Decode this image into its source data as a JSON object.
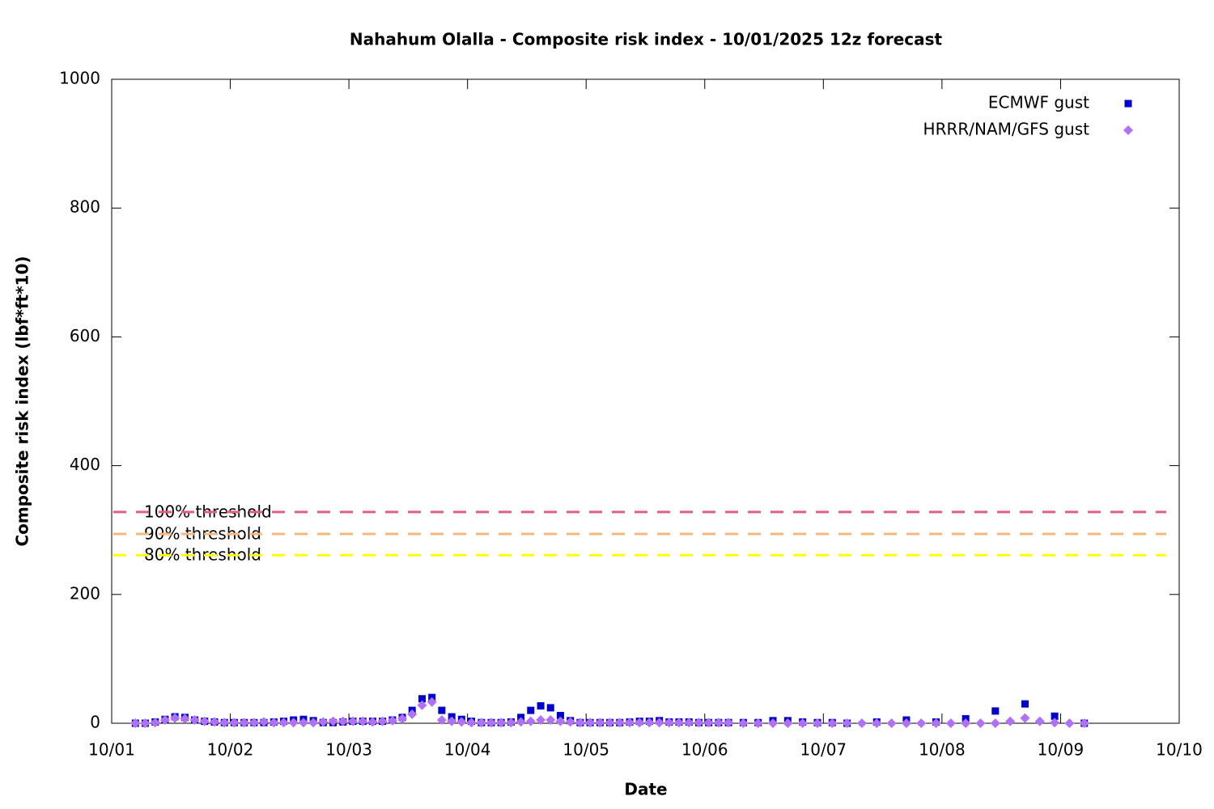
{
  "chart_data": {
    "type": "scatter",
    "title": "Nahahum Olalla - Composite risk index - 10/01/2025 12z forecast",
    "x_label": "Date",
    "y_label": "Composite risk index (lbf*ft*10)",
    "xlim": [
      1,
      10
    ],
    "xticks": [
      {
        "value": 1,
        "label": "10/01"
      },
      {
        "value": 2,
        "label": "10/02"
      },
      {
        "value": 3,
        "label": "10/03"
      },
      {
        "value": 4,
        "label": "10/04"
      },
      {
        "value": 5,
        "label": "10/05"
      },
      {
        "value": 6,
        "label": "10/06"
      },
      {
        "value": 7,
        "label": "10/07"
      },
      {
        "value": 8,
        "label": "10/08"
      },
      {
        "value": 9,
        "label": "10/09"
      },
      {
        "value": 10,
        "label": "10/10"
      }
    ],
    "ylim": [
      0,
      1000
    ],
    "yticks": [
      0,
      200,
      400,
      600,
      800,
      1000
    ],
    "legend": "top right",
    "x": [
      1.2,
      1.283,
      1.367,
      1.45,
      1.533,
      1.617,
      1.7,
      1.783,
      1.867,
      1.95,
      2.033,
      2.117,
      2.2,
      2.283,
      2.367,
      2.45,
      2.533,
      2.617,
      2.7,
      2.783,
      2.867,
      2.95,
      3.033,
      3.117,
      3.2,
      3.283,
      3.367,
      3.45,
      3.533,
      3.617,
      3.7,
      3.783,
      3.867,
      3.95,
      4.033,
      4.117,
      4.2,
      4.283,
      4.367,
      4.45,
      4.533,
      4.617,
      4.7,
      4.783,
      4.867,
      4.95,
      5.033,
      5.117,
      5.2,
      5.283,
      5.367,
      5.45,
      5.533,
      5.617,
      5.7,
      5.783,
      5.867,
      5.95,
      6.033,
      6.117,
      6.2,
      6.325,
      6.45,
      6.575,
      6.7,
      6.825,
      6.95,
      7.075,
      7.2,
      7.325,
      7.45,
      7.575,
      7.7,
      7.825,
      7.95,
      8.075,
      8.2,
      8.325,
      8.45,
      8.575,
      8.7,
      8.825,
      8.95,
      9.075,
      9.2
    ],
    "series": [
      {
        "name": "ECMWF gust",
        "color": "#0000cc",
        "marker": "square",
        "values": [
          0,
          0,
          2,
          6,
          10,
          9,
          5,
          3,
          2,
          1,
          1,
          1,
          1,
          1,
          2,
          3,
          5,
          6,
          4,
          1,
          1,
          2,
          3,
          3,
          3,
          3,
          5,
          9,
          20,
          38,
          40,
          20,
          10,
          6,
          3,
          1,
          1,
          1,
          2,
          9,
          20,
          27,
          24,
          12,
          4,
          1,
          1,
          1,
          1,
          1,
          2,
          3,
          3,
          4,
          2,
          2,
          2,
          1,
          1,
          1,
          1,
          1,
          1,
          4,
          4,
          2,
          1,
          1,
          0,
          null,
          2,
          null,
          5,
          null,
          2,
          null,
          7,
          null,
          19,
          null,
          30,
          null,
          11,
          null,
          0
        ]
      },
      {
        "name": "HRRR/NAM/GFS gust",
        "color": "#b070f8",
        "marker": "diamond",
        "values": [
          0,
          0,
          1,
          5,
          8,
          7,
          5,
          3,
          2,
          1,
          1,
          1,
          1,
          2,
          1,
          1,
          1,
          1,
          1,
          2,
          3,
          3,
          3,
          3,
          2,
          3,
          4,
          7,
          14,
          28,
          33,
          5,
          3,
          2,
          1,
          1,
          1,
          1,
          1,
          2,
          3,
          5,
          5,
          3,
          2,
          1,
          1,
          1,
          1,
          1,
          1,
          1,
          1,
          1,
          1,
          1,
          1,
          1,
          1,
          1,
          1,
          0,
          0,
          0,
          0,
          0,
          0,
          0,
          0,
          0,
          0,
          0,
          0,
          0,
          0,
          0,
          0,
          0,
          0,
          3,
          8,
          3,
          1,
          0,
          0
        ]
      }
    ],
    "thresholds": [
      {
        "label": "100% threshold",
        "value": 328,
        "color": "#e0607e"
      },
      {
        "label": "90% threshold",
        "value": 294,
        "color": "#f6b880"
      },
      {
        "label": "80% threshold",
        "value": 261,
        "color": "#ffff00"
      }
    ]
  }
}
